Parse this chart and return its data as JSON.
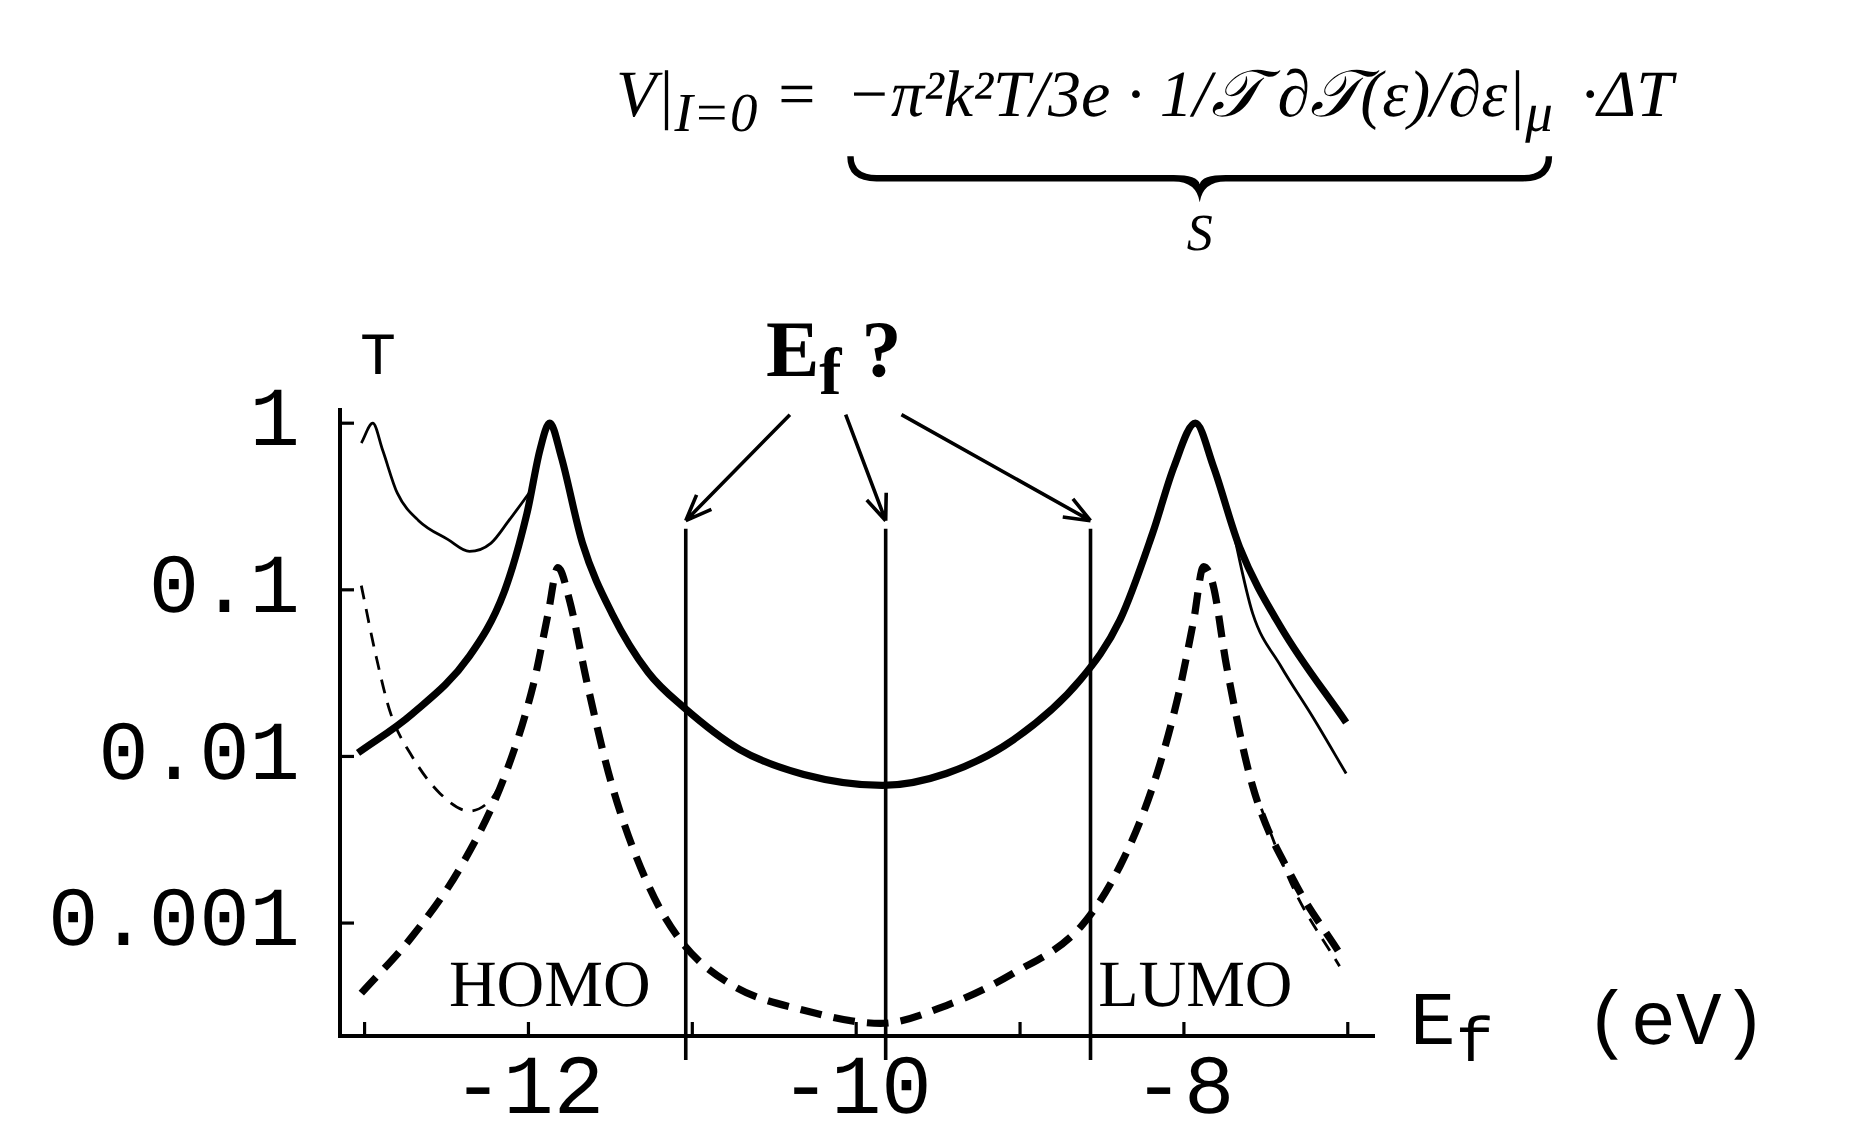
{
  "chart_data": {
    "type": "line",
    "xlabel": "E$_{f}$  (eV)",
    "ylabel": "T",
    "annotations": [
      "V|$_{I=0}$ =",
      "−π²k²T/3e · 1/𝒯 ∂𝒯(ε)/∂ε|$_{μ}$",
      "·ΔT",
      "S",
      {
        "text": "E$_{f}$ ?",
        "x": -9.82,
        "y": 0.26
      },
      "HOMO",
      "LUMO"
    ],
    "log": "y",
    "xlim": [
      -13.15,
      -6.84
    ],
    "ylim": [
      0.00021,
      1.2
    ],
    "xticks": [
      {
        "value": -13,
        "label": null
      },
      -12,
      {
        "value": -11,
        "label": null
      },
      -10,
      {
        "value": -9,
        "label": null
      },
      -8,
      {
        "value": -7,
        "label": null
      }
    ],
    "yticks": [
      0.001,
      0.01,
      0.1,
      1
    ],
    "grid": false,
    "legend": false,
    "marker": "none",
    "ref_lines": [
      {
        "axis": "x",
        "value": -11.04
      },
      {
        "axis": "x",
        "value": -9.82
      },
      {
        "axis": "x",
        "value": -8.57
      }
    ],
    "series": [
      {
        "color": "#000000",
        "line_style": "solid",
        "x": [
          -13.04,
          -12.71,
          -12.36,
          -12.15,
          -12.01,
          -11.93,
          -11.87,
          -11.8,
          -11.67,
          -11.49,
          -11.27,
          -11.06,
          -10.71,
          -10.32,
          -9.84,
          -9.45,
          -9.04,
          -8.63,
          -8.39,
          -8.19,
          -8.06,
          -7.93,
          -7.82,
          -7.66,
          -7.41,
          -7.01
        ],
        "values": [
          0.0105,
          0.018,
          0.04,
          0.096,
          0.285,
          0.69,
          1,
          0.63,
          0.19,
          0.072,
          0.032,
          0.02,
          0.011,
          0.0078,
          0.0067,
          0.0079,
          0.0126,
          0.029,
          0.066,
          0.22,
          0.55,
          1,
          0.55,
          0.18,
          0.06,
          0.016
        ]
      },
      {
        "color": "#000000",
        "line_style": "solid",
        "x": [
          -13.02,
          -12.95,
          -12.89,
          -12.8,
          -12.67,
          -12.49,
          -12.36,
          -12.23,
          -12.12,
          -11.98,
          -9.9,
          -7.72,
          -7.58,
          -7.41,
          -7.21,
          -7.01
        ],
        "values": [
          0.76,
          1,
          0.69,
          0.38,
          0.26,
          0.2,
          0.17,
          0.19,
          0.26,
          0.4,
          null,
          0.28,
          0.072,
          0.035,
          0.017,
          0.0079
        ]
      },
      {
        "color": "#000000",
        "line_style": "dashed",
        "x": [
          -13.02,
          -12.71,
          -12.41,
          -12.15,
          -11.97,
          -11.88,
          -11.82,
          -11.75,
          -11.64,
          -11.49,
          -11.27,
          -11.06,
          -10.75,
          -10.32,
          -9.85,
          -9.45,
          -9.04,
          -8.63,
          -8.39,
          -8.19,
          -8.04,
          -7.94,
          -7.88,
          -7.82,
          -7.74,
          -7.58,
          -7.33,
          -7.05
        ],
        "values": [
          0.00038,
          0.00083,
          0.0022,
          0.0074,
          0.027,
          0.072,
          0.136,
          0.087,
          0.027,
          0.0067,
          0.0017,
          0.00076,
          0.00042,
          0.0003,
          0.00025,
          0.00032,
          0.0005,
          0.00095,
          0.0022,
          0.0066,
          0.022,
          0.066,
          0.138,
          0.105,
          0.035,
          0.0066,
          0.0018,
          0.00066
        ]
      },
      {
        "color": "#000000",
        "line_style": "dashed",
        "x": [
          -13.02,
          -12.93,
          -12.84,
          -12.71,
          -12.54,
          -12.36,
          -12.23,
          -12.15,
          -9.9,
          -7.58,
          -7.33,
          -7.05
        ],
        "values": [
          0.106,
          0.04,
          0.018,
          0.01,
          0.006,
          0.0047,
          0.0055,
          0.0074,
          null,
          0.0066,
          0.0016,
          0.00055
        ]
      }
    ]
  }
}
